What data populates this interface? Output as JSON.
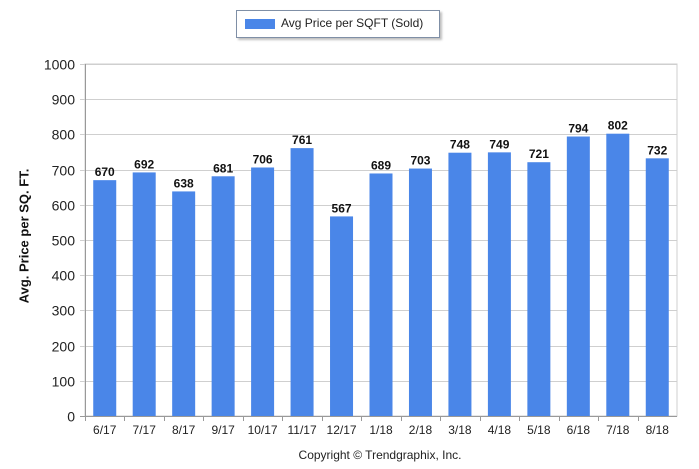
{
  "legend": {
    "label": "Avg Price per SQFT (Sold)",
    "color": "#4a86e8"
  },
  "footer": {
    "copyright": "Copyright © Trendgraphix, Inc."
  },
  "chart_data": {
    "type": "bar",
    "categories": [
      "6/17",
      "7/17",
      "8/17",
      "9/17",
      "10/17",
      "11/17",
      "12/17",
      "1/18",
      "2/18",
      "3/18",
      "4/18",
      "5/18",
      "6/18",
      "7/18",
      "8/18"
    ],
    "series": [
      {
        "name": "Avg Price per SQFT (Sold)",
        "values": [
          670,
          692,
          638,
          681,
          706,
          761,
          567,
          689,
          703,
          748,
          749,
          721,
          794,
          802,
          732
        ]
      }
    ],
    "title": "",
    "xlabel": "",
    "ylabel": "Avg. Price per SQ. FT.",
    "ylim": [
      0,
      1000
    ],
    "yticks": [
      0,
      100,
      200,
      300,
      400,
      500,
      600,
      700,
      800,
      900,
      1000
    ],
    "grid": true,
    "legend_position": "top-center",
    "bar_color": "#4a86e8"
  }
}
